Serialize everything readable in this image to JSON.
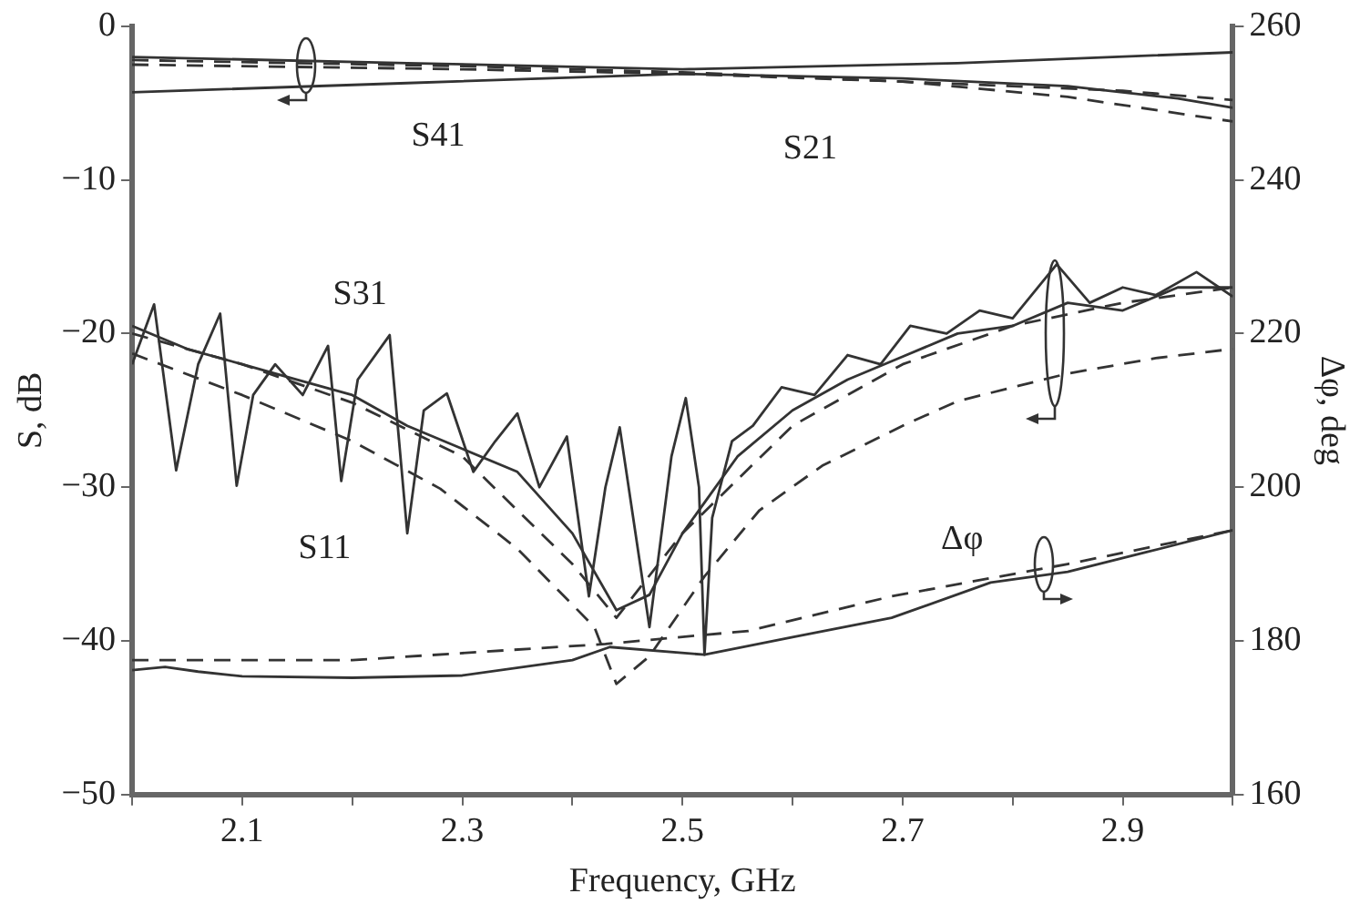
{
  "chart_data": {
    "type": "line",
    "xlabel": "Frequency, GHz",
    "ylabel": "S, dB",
    "y2label": "Δφ, deg",
    "xlim": [
      2.0,
      3.0
    ],
    "xticks": [
      {
        "value": 2.0,
        "label": null
      },
      2.1,
      {
        "value": 2.2,
        "label": null
      },
      2.3,
      {
        "value": 2.4,
        "label": null
      },
      2.5,
      {
        "value": 2.6,
        "label": null
      },
      2.7,
      {
        "value": 2.8,
        "label": null
      },
      2.9,
      {
        "value": 3.0,
        "label": null
      }
    ],
    "ylim": [
      -50,
      0
    ],
    "yticks": [
      -50,
      -40,
      -30,
      -20,
      -10,
      0
    ],
    "y2lim": [
      160,
      260
    ],
    "y2ticks": [
      160,
      180,
      200,
      220,
      240,
      260
    ],
    "grid": false,
    "legend": false,
    "marker": "none",
    "series": [
      {
        "color": "#333333",
        "line_style": "solid",
        "x": [
          2.0,
          2.25,
          2.5,
          2.75,
          3.0
        ],
        "values": [
          -2.0,
          -2.4,
          -2.8,
          -2.4,
          -1.7
        ]
      },
      {
        "color": "#333333",
        "line_style": "dashed",
        "x": [
          2.0,
          2.3,
          2.5,
          2.7,
          2.85,
          3.0
        ],
        "values": [
          -2.2,
          -2.6,
          -3.0,
          -3.6,
          -4.6,
          -6.2
        ]
      },
      {
        "color": "#333333",
        "line_style": "solid",
        "x": [
          2.0,
          2.25,
          2.5,
          2.7,
          2.85,
          2.95,
          3.0
        ],
        "values": [
          -4.3,
          -3.7,
          -3.1,
          -3.4,
          -3.9,
          -4.7,
          -5.3
        ]
      },
      {
        "color": "#333333",
        "line_style": "dashed",
        "x": [
          2.0,
          2.3,
          2.5,
          2.7,
          2.9,
          3.0
        ],
        "values": [
          -2.5,
          -2.8,
          -3.1,
          -3.6,
          -4.2,
          -4.8
        ]
      },
      {
        "color": "#333333",
        "line_style": "solid",
        "x": [
          2.0,
          2.02,
          2.04,
          2.06,
          2.08,
          2.095,
          2.11,
          2.13,
          2.155,
          2.178,
          2.19,
          2.205,
          2.234,
          2.25,
          2.265,
          2.286,
          2.31,
          2.33,
          2.35,
          2.37,
          2.395,
          2.415,
          2.43,
          2.443,
          2.47,
          2.49,
          2.503,
          2.515,
          2.52,
          2.527,
          2.545,
          2.564,
          2.59,
          2.62,
          2.65,
          2.68,
          2.707,
          2.74,
          2.77,
          2.8,
          2.84,
          2.87,
          2.9,
          2.93,
          2.967,
          3.0
        ],
        "values": [
          -22,
          -18.1,
          -28.9,
          -22,
          -18.7,
          -29.9,
          -24,
          -22,
          -24,
          -20.8,
          -29.6,
          -23,
          -20.1,
          -33.0,
          -25,
          -23.9,
          -29,
          -27,
          -25.2,
          -30,
          -26.7,
          -37.1,
          -30,
          -26.1,
          -39.1,
          -28,
          -24.2,
          -30,
          -40.9,
          -32,
          -27,
          -26,
          -23.5,
          -24,
          -21.4,
          -22,
          -19.5,
          -20,
          -18.5,
          -19,
          -15.5,
          -18,
          -17,
          -17.5,
          -16,
          -17.6
        ]
      },
      {
        "color": "#333333",
        "line_style": "solid",
        "x": [
          2.0,
          2.05,
          2.1,
          2.15,
          2.2,
          2.25,
          2.3,
          2.35,
          2.4,
          2.44,
          2.47,
          2.5,
          2.55,
          2.6,
          2.65,
          2.7,
          2.75,
          2.8,
          2.85,
          2.9,
          2.95,
          3.0
        ],
        "values": [
          -19.5,
          -21,
          -22,
          -23,
          -24,
          -26,
          -27.5,
          -29,
          -33,
          -38,
          -37,
          -33,
          -28,
          -25,
          -23,
          -21.5,
          -20,
          -19.5,
          -18,
          -18.5,
          -17,
          -17
        ]
      },
      {
        "color": "#333333",
        "line_style": "dashed",
        "x": [
          2.0,
          2.1,
          2.2,
          2.3,
          2.4,
          2.44,
          2.5,
          2.6,
          2.7,
          2.8,
          2.9,
          3.0
        ],
        "values": [
          -20,
          -22,
          -24.5,
          -28,
          -35,
          -38.5,
          -33,
          -26,
          -22,
          -19.5,
          -18,
          -17
        ]
      },
      {
        "color": "#333333",
        "line_style": "dashed",
        "x": [
          2.0,
          2.1,
          2.2,
          2.28,
          2.35,
          2.42,
          2.44,
          2.47,
          2.52,
          2.57,
          2.627,
          2.7,
          2.75,
          2.85,
          2.93,
          3.0
        ],
        "values": [
          -21.3,
          -24,
          -27,
          -30.1,
          -34,
          -39.1,
          -42.8,
          -41,
          -35.8,
          -31.5,
          -28.6,
          -26,
          -24.4,
          -22.6,
          -21.6,
          -21.0
        ]
      },
      {
        "color": "#333333",
        "line_style": "solid",
        "axis": "y2",
        "x": [
          2.0,
          2.03,
          2.06,
          2.1,
          2.2,
          2.3,
          2.4,
          2.434,
          2.52,
          2.6,
          2.69,
          2.78,
          2.85,
          2.92,
          3.0
        ],
        "values": [
          176.2,
          176.6,
          176,
          175.4,
          175.2,
          175.5,
          177.5,
          179.2,
          178.2,
          180.5,
          183,
          187.6,
          189,
          191.5,
          194.4
        ]
      },
      {
        "color": "#333333",
        "line_style": "dashed",
        "axis": "y2",
        "x": [
          2.0,
          2.2,
          2.43,
          2.56,
          2.69,
          2.85,
          3.0
        ],
        "values": [
          177.5,
          177.5,
          179.6,
          181.3,
          185.8,
          190,
          194.4
        ]
      }
    ],
    "annotations": [
      "S41",
      "S21",
      "S31",
      "S11",
      "Δφ"
    ]
  }
}
